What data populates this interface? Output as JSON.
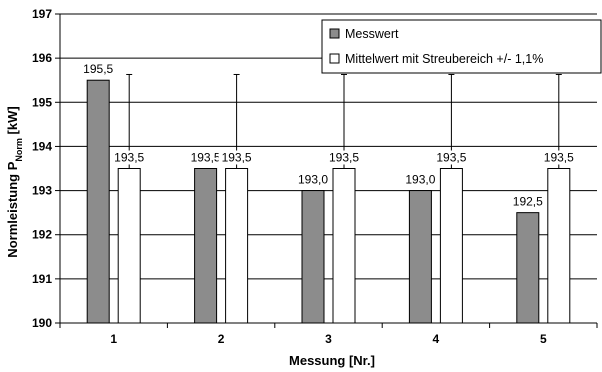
{
  "chart_data": {
    "type": "bar",
    "categories": [
      "1",
      "2",
      "3",
      "4",
      "5"
    ],
    "series": [
      {
        "name": "Messwert",
        "color": "#8c8c8c",
        "values": [
          195.5,
          193.5,
          193.0,
          193.0,
          192.5
        ],
        "labels": [
          "195,5",
          "193,5",
          "193,0",
          "193,0",
          "192,5"
        ]
      },
      {
        "name": "Mittelwert mit Streubereich +/- 1,1%",
        "color": "#ffffff",
        "values": [
          193.5,
          193.5,
          193.5,
          193.5,
          193.5
        ],
        "labels": [
          "193,5",
          "193,5",
          "193,5",
          "193,5",
          "193,5"
        ],
        "error_pct": 1.1,
        "error_range": [
          191.37,
          195.63
        ]
      }
    ],
    "xlabel": "Messung [Nr.]",
    "ylabel": {
      "main": "Normleistung P",
      "sub": "Norm",
      "suffix": " [kW]"
    },
    "ylim": [
      190,
      197
    ],
    "yticks": [
      "190",
      "191",
      "192",
      "193",
      "194",
      "195",
      "196",
      "197"
    ],
    "grid": true,
    "legend_position": "top-right"
  }
}
